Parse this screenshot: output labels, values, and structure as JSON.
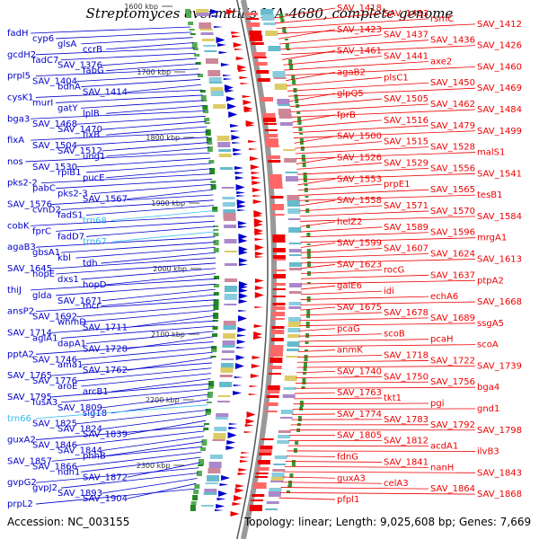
{
  "title": "Streptomyces avermitilis MA-4680, complete genome",
  "footer": {
    "accession": "Accession: NC_003155",
    "stats": "Topology: linear; Length: 9,025,608 bp; Genes: 7,669"
  },
  "colors": {
    "left_strand": "#0000cc",
    "right_strand": "#ee0000",
    "trna": "#33bbee",
    "axis": "#888888"
  },
  "ruler": [
    "1600 kbp",
    "1700 kbp",
    "1800 kbp",
    "1900 kbp",
    "2000 kbp",
    "2100 kbp",
    "2200 kbp",
    "2300 kbp"
  ],
  "left_genes": [
    "fadH",
    "cyp6",
    "glsA",
    "ccrB",
    "gcdH2",
    "fadC7",
    "SAV_1376",
    "fabG",
    "prpl5",
    "SAV_1404",
    "bdhA",
    "SAV_1414",
    "cysK1",
    "murI",
    "gatY",
    "lplB",
    "bga3",
    "SAV_1468",
    "SAV_1470",
    "fixB",
    "fixA",
    "SAV_1504",
    "SAV_1512",
    "ung1",
    "nos",
    "SAV_1530",
    "rpiB1",
    "pucE",
    "pks2-2",
    "pabC",
    "pks2-3",
    "SAV_1567",
    "SAV_1576",
    "cvnD2",
    "fadS1",
    "trn68",
    "cobK",
    "fprC",
    "fadD7",
    "trn67",
    "agaB3",
    "gbsA1",
    "kbl",
    "tdh",
    "SAV_1645",
    "hopE",
    "dxs1",
    "hopD",
    "thiJ",
    "glda",
    "SAV_1671",
    "mcr",
    "ansP2",
    "SAV_1692",
    "whmD",
    "SAV_1711",
    "SAV_1714",
    "aglA1",
    "dapA1",
    "SAV_1728",
    "pptA2",
    "SAV_1746",
    "ama1",
    "SAV_1762",
    "SAV_1765",
    "SAV_1776",
    "aroE",
    "arcB1",
    "SAV_1795",
    "fusA3",
    "SAV_1809",
    "sig18",
    "trn66",
    "SAV_1825",
    "SAV_1824",
    "SAV_1839",
    "guxA2",
    "SAV_1846",
    "SAV_1844",
    "phhB",
    "SAV_1857",
    "SAV_1866",
    "ndh1",
    "SAV_1872",
    "gvpG2",
    "gvpJ2",
    "SAV_1893",
    "SAV_1904",
    "prpL2"
  ],
  "right_genes": [
    "SAV_1418",
    "SAV_1433",
    "rsmC",
    "SAV_1412",
    "SAV_1423",
    "SAV_1437",
    "SAV_1436",
    "SAV_1426",
    "SAV_1461",
    "SAV_1441",
    "axe2",
    "SAV_1460",
    "agaB2",
    "plsC1",
    "SAV_1450",
    "SAV_1469",
    "glpQ5",
    "SAV_1505",
    "SAV_1462",
    "SAV_1484",
    "fprB",
    "SAV_1516",
    "SAV_1479",
    "SAV_1499",
    "SAV_1500",
    "SAV_1515",
    "SAV_1528",
    "malS1",
    "SAV_1526",
    "SAV_1529",
    "SAV_1556",
    "SAV_1541",
    "SAV_1553",
    "prpE1",
    "SAV_1565",
    "tesB1",
    "SAV_1558",
    "SAV_1571",
    "SAV_1570",
    "SAV_1584",
    "helZ2",
    "SAV_1589",
    "SAV_1596",
    "mrgA1",
    "SAV_1599",
    "SAV_1607",
    "SAV_1624",
    "SAV_1613",
    "SAV_1623",
    "rocG",
    "SAV_1637",
    "ptpA2",
    "galE6",
    "idi",
    "echA6",
    "SAV_1668",
    "SAV_1675",
    "SAV_1678",
    "SAV_1689",
    "ssgA5",
    "pcaG",
    "scoB",
    "pcaH",
    "scoA",
    "anmK",
    "SAV_1718",
    "SAV_1722",
    "SAV_1739",
    "SAV_1740",
    "SAV_1750",
    "SAV_1756",
    "bga4",
    "SAV_1763",
    "tkt1",
    "pgi",
    "gnd1",
    "SAV_1774",
    "SAV_1783",
    "SAV_1792",
    "SAV_1798",
    "SAV_1805",
    "SAV_1812",
    "acdA1",
    "ilvB3",
    "fdnG",
    "SAV_1841",
    "nanH",
    "SAV_1843",
    "guxA3",
    "celA3",
    "SAV_1864",
    "SAV_1868",
    "pfpl1"
  ]
}
